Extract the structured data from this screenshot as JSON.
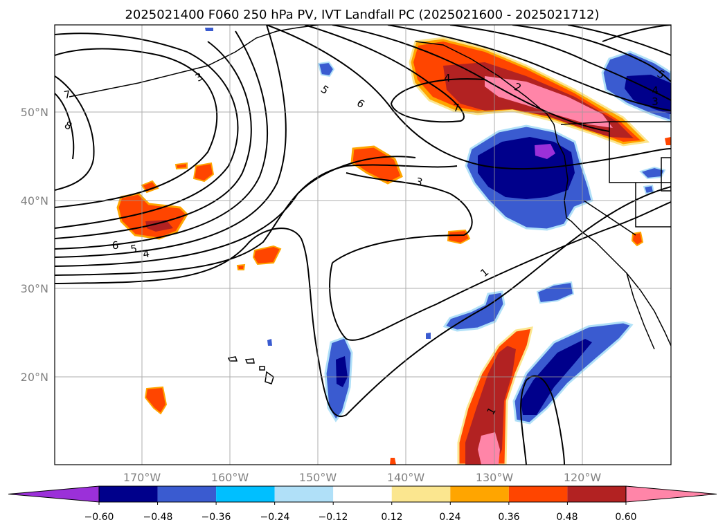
{
  "title": "2025021400 F060 250 hPa PV, IVT Landfall PC (2025021600 - 2025021712)",
  "lat_ticks": [
    "50°N",
    "40°N",
    "30°N",
    "20°N"
  ],
  "lon_ticks": [
    "170°W",
    "160°W",
    "150°W",
    "140°W",
    "130°W",
    "120°W"
  ],
  "colorbar": {
    "tick_labels": [
      "−0.60",
      "−0.48",
      "−0.36",
      "−0.24",
      "−0.12",
      "0.12",
      "0.24",
      "0.36",
      "0.48",
      "0.60"
    ],
    "colors": [
      "#9b30d9",
      "#00008b",
      "#3a5bd0",
      "#00bfff",
      "#b0e0f8",
      "#ffffff",
      "#fbe68f",
      "#ffa500",
      "#ff4500",
      "#b22222",
      "#ff85a8"
    ]
  },
  "contour_labels": [
    "7",
    "8",
    "3",
    "6",
    "5",
    "4",
    "5",
    "6",
    "3",
    "4",
    "2",
    "7",
    "1",
    "1",
    "3",
    "4",
    "5"
  ]
}
